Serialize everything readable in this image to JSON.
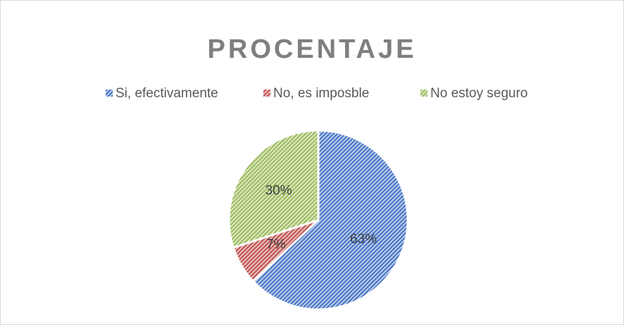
{
  "chart_data": {
    "type": "pie",
    "title": "PROCENTAJE",
    "categories": [
      "Si, efectivamente",
      "No, es imposble",
      "No estoy seguro"
    ],
    "values": [
      63,
      7,
      30
    ],
    "value_labels": [
      "63%",
      "7%",
      "30%"
    ],
    "colors": [
      "#4472c4",
      "#c0504d",
      "#9bbb59"
    ],
    "legend": "top"
  }
}
